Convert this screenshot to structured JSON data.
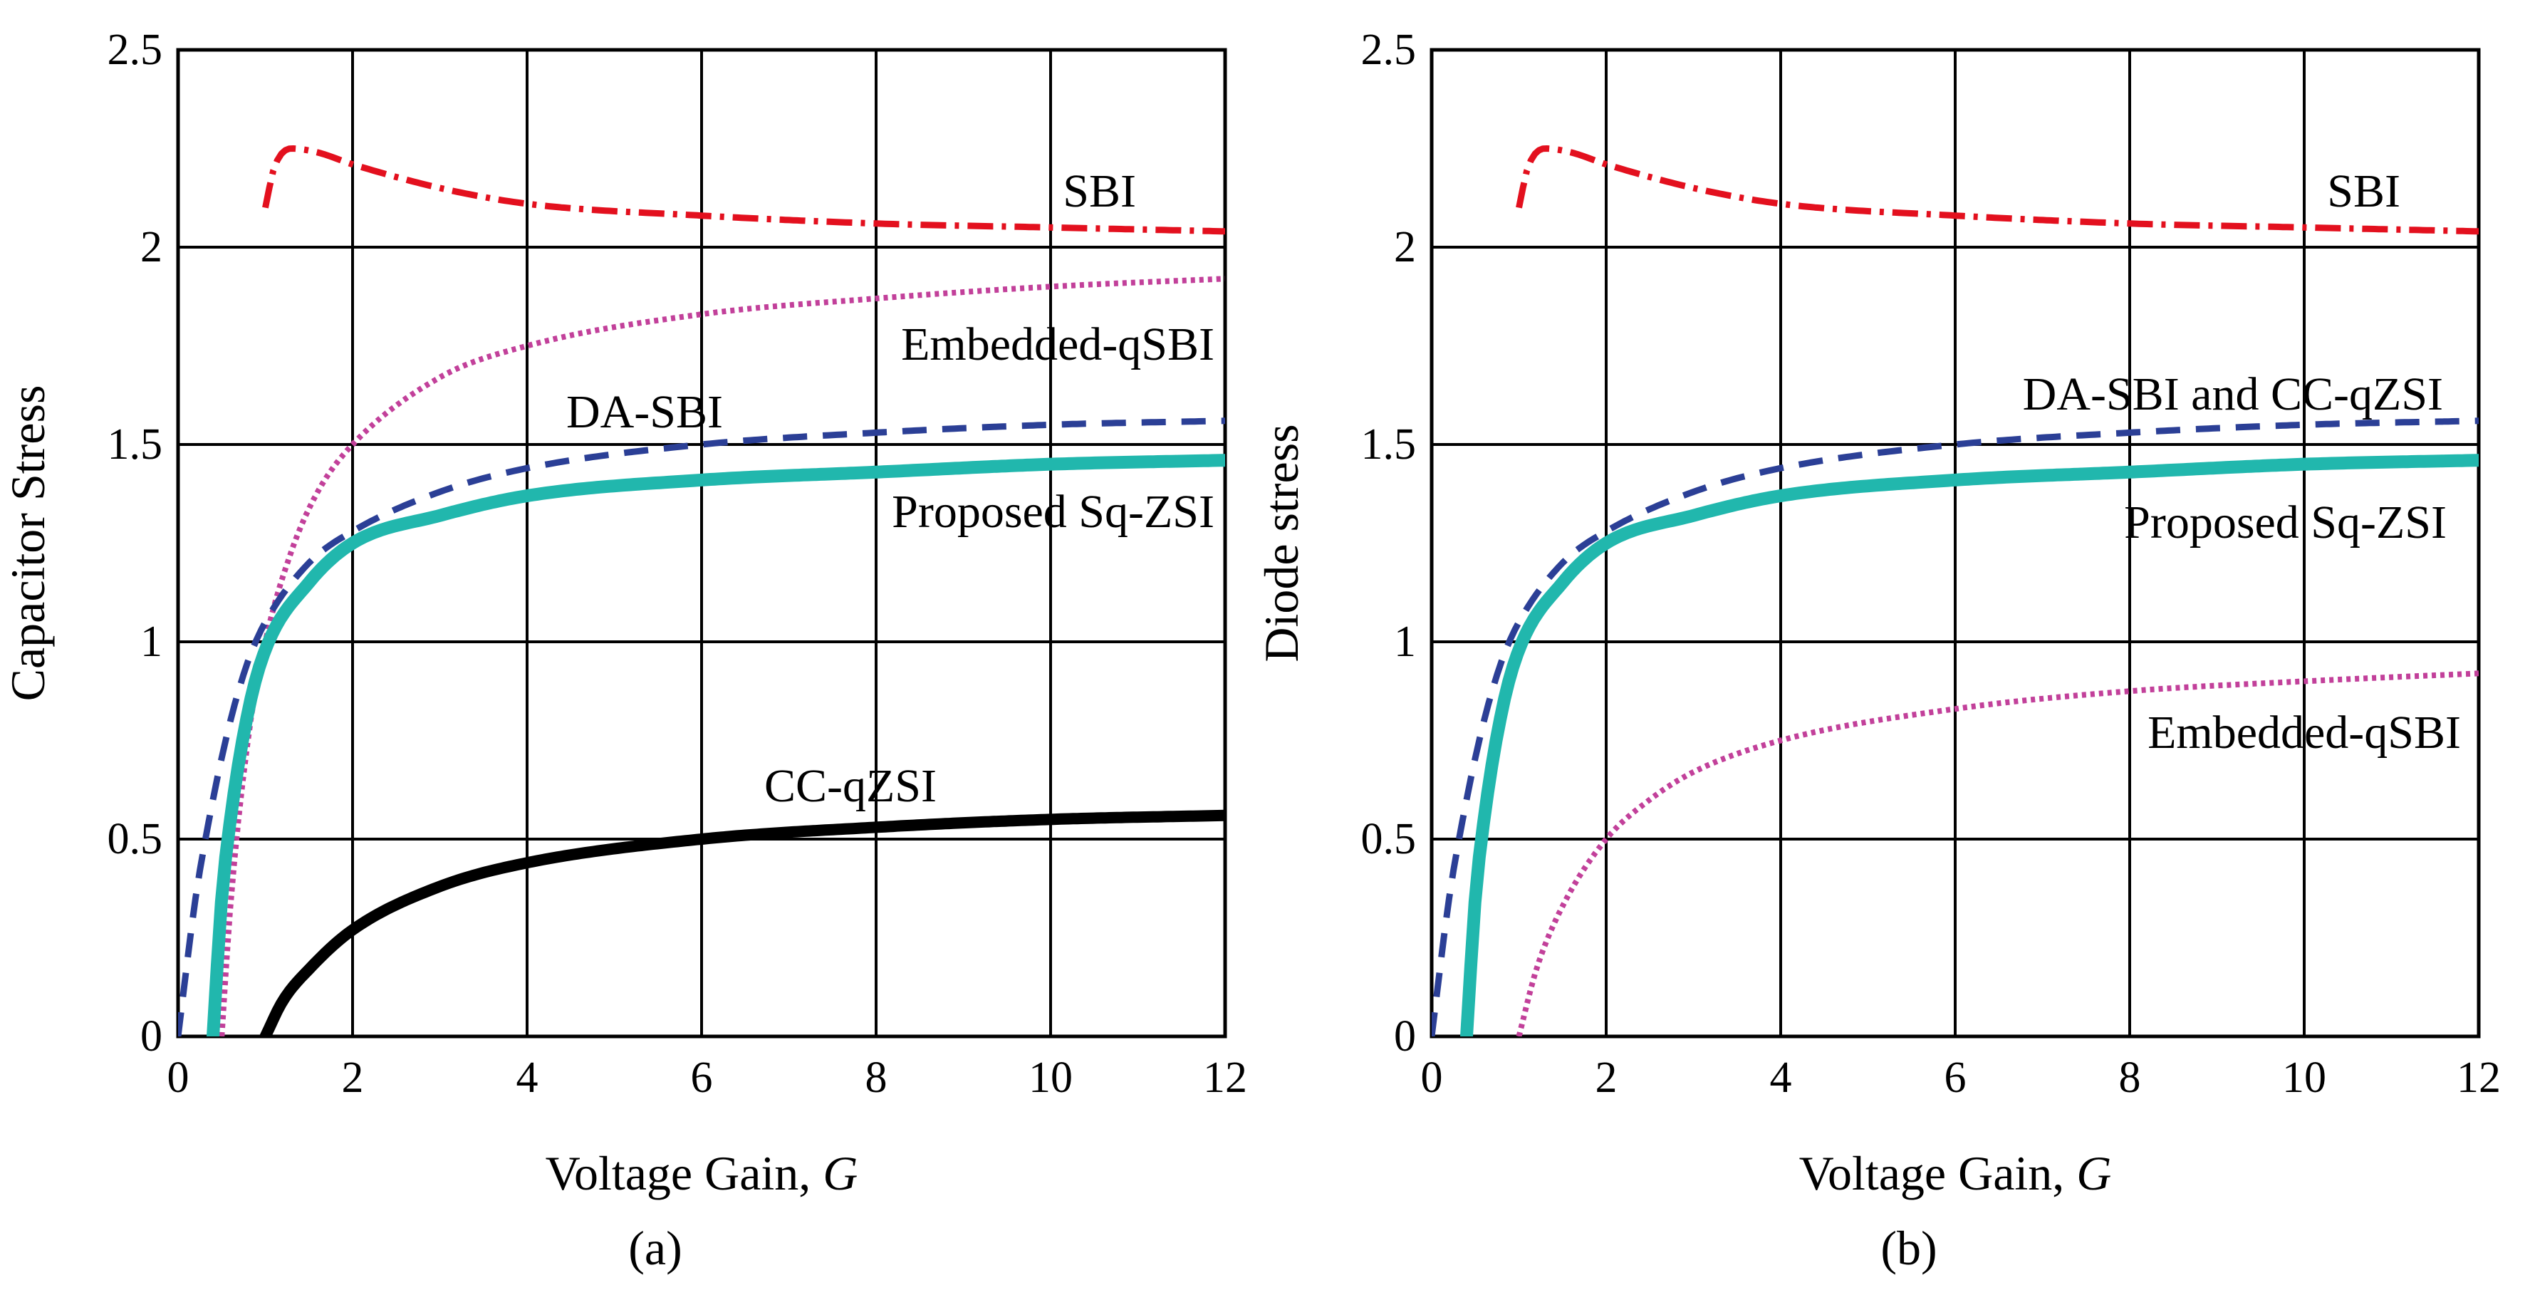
{
  "chart_data": [
    {
      "id": "a",
      "type": "line",
      "caption": "(a)",
      "xlabel": "Voltage Gain, ",
      "xlabel_var": "G",
      "ylabel": "Capacitor Stress",
      "xlim": [
        0,
        12
      ],
      "ylim": [
        0,
        2.5
      ],
      "xticks": [
        "0",
        "2",
        "4",
        "6",
        "8",
        "10",
        "12"
      ],
      "yticks": [
        "0",
        "0.5",
        "1",
        "1.5",
        "2",
        "2.5"
      ],
      "grid": true,
      "series": [
        {
          "name": "SBI",
          "label": "SBI",
          "color": "#e3101e",
          "style": "dashdot",
          "x": [
            1.0,
            1.1,
            1.3,
            1.6,
            2,
            3,
            4,
            6,
            8,
            10,
            12
          ],
          "y": [
            2.1,
            2.2,
            2.25,
            2.24,
            2.21,
            2.15,
            2.11,
            2.08,
            2.06,
            2.05,
            2.04
          ]
        },
        {
          "name": "Embedded-qSBI",
          "label": "Embedded-qSBI",
          "color": "#c2409a",
          "style": "dotted",
          "x": [
            0.5,
            0.6,
            0.8,
            1.0,
            1.3,
            1.6,
            2,
            3,
            4,
            6,
            8,
            10,
            12
          ],
          "y": [
            0.0,
            0.33,
            0.75,
            1.0,
            1.23,
            1.38,
            1.5,
            1.67,
            1.75,
            1.83,
            1.87,
            1.9,
            1.92
          ]
        },
        {
          "name": "DA-SBI",
          "label": "DA-SBI",
          "color": "#2b3f96",
          "style": "dashed",
          "x": [
            0.0,
            0.2,
            0.4,
            0.6,
            0.8,
            1.0,
            1.5,
            2,
            3,
            4,
            6,
            8,
            10,
            12
          ],
          "y": [
            0.0,
            0.35,
            0.6,
            0.8,
            0.95,
            1.05,
            1.2,
            1.28,
            1.38,
            1.44,
            1.5,
            1.53,
            1.55,
            1.56
          ]
        },
        {
          "name": "Proposed Sq-ZSI",
          "label": "Proposed Sq-ZSI",
          "color": "#21b7ad",
          "style": "solid-thick",
          "x": [
            0.4,
            0.5,
            0.6,
            0.8,
            1.0,
            1.5,
            2,
            3,
            4,
            6,
            8,
            10,
            12
          ],
          "y": [
            0.0,
            0.35,
            0.55,
            0.82,
            0.98,
            1.15,
            1.25,
            1.32,
            1.37,
            1.41,
            1.43,
            1.45,
            1.46
          ]
        },
        {
          "name": "CC-qZSI",
          "label": "CC-qZSI",
          "color": "#000000",
          "style": "solid-black",
          "x": [
            1.0,
            1.2,
            1.5,
            2,
            3,
            4,
            6,
            8,
            10,
            12
          ],
          "y": [
            0.0,
            0.09,
            0.17,
            0.27,
            0.38,
            0.44,
            0.5,
            0.53,
            0.55,
            0.56
          ]
        }
      ]
    },
    {
      "id": "b",
      "type": "line",
      "caption": "(b)",
      "xlabel": "Voltage Gain, ",
      "xlabel_var": "G",
      "ylabel": "Diode stress",
      "xlim": [
        0,
        12
      ],
      "ylim": [
        0,
        2.5
      ],
      "xticks": [
        "0",
        "2",
        "4",
        "6",
        "8",
        "10",
        "12"
      ],
      "yticks": [
        "0",
        "0.5",
        "1",
        "1.5",
        "2",
        "2.5"
      ],
      "grid": true,
      "series": [
        {
          "name": "SBI",
          "label": "SBI",
          "color": "#e3101e",
          "style": "dashdot",
          "x": [
            1.0,
            1.1,
            1.3,
            1.6,
            2,
            3,
            4,
            6,
            8,
            10,
            12
          ],
          "y": [
            2.1,
            2.2,
            2.25,
            2.24,
            2.21,
            2.15,
            2.11,
            2.08,
            2.06,
            2.05,
            2.04
          ]
        },
        {
          "name": "DA-SBI and CC-qZSI",
          "label": "DA-SBI and CC-qZSI",
          "color": "#2b3f96",
          "style": "dashed",
          "x": [
            0.0,
            0.2,
            0.4,
            0.6,
            0.8,
            1.0,
            1.5,
            2,
            3,
            4,
            6,
            8,
            10,
            12
          ],
          "y": [
            0.0,
            0.35,
            0.6,
            0.8,
            0.95,
            1.05,
            1.2,
            1.28,
            1.38,
            1.44,
            1.5,
            1.53,
            1.55,
            1.56
          ]
        },
        {
          "name": "Proposed Sq-ZSI",
          "label": "Proposed Sq-ZSI",
          "color": "#21b7ad",
          "style": "solid-thick",
          "x": [
            0.4,
            0.5,
            0.6,
            0.8,
            1.0,
            1.5,
            2,
            3,
            4,
            6,
            8,
            10,
            12
          ],
          "y": [
            0.0,
            0.35,
            0.55,
            0.82,
            0.98,
            1.15,
            1.25,
            1.32,
            1.37,
            1.41,
            1.43,
            1.45,
            1.46
          ]
        },
        {
          "name": "Embedded-qSBI",
          "label": "Embedded-qSBI",
          "color": "#c2409a",
          "style": "dotted",
          "x": [
            1.0,
            1.2,
            1.5,
            2,
            2.5,
            3,
            4,
            6,
            8,
            10,
            12
          ],
          "y": [
            0.0,
            0.17,
            0.33,
            0.5,
            0.6,
            0.67,
            0.75,
            0.83,
            0.875,
            0.9,
            0.92
          ]
        }
      ]
    }
  ]
}
